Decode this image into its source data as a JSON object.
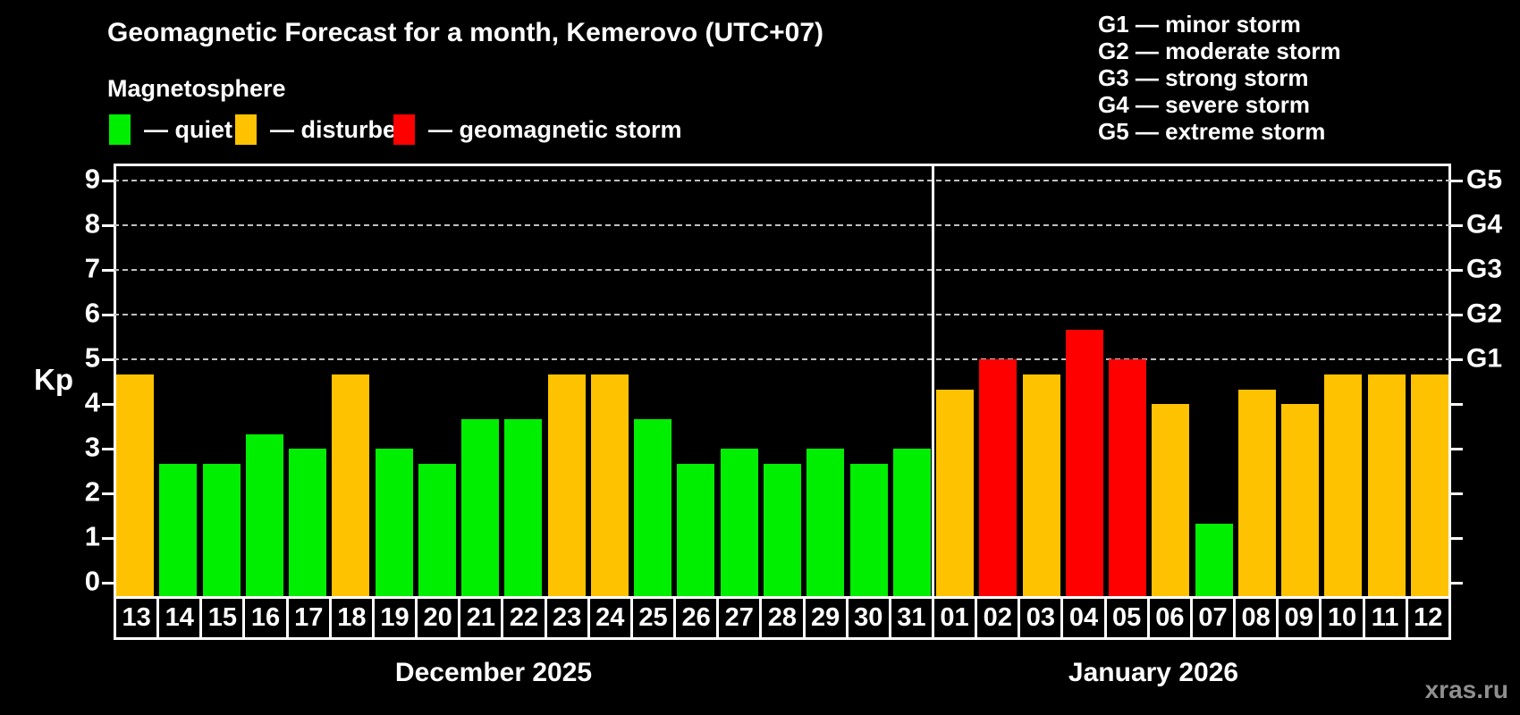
{
  "header": {
    "title": "Geomagnetic Forecast for a month, Kemerovo (UTC+07)",
    "subtitle": "Magnetosphere",
    "legend": [
      {
        "key": "quiet",
        "label": "— quiet",
        "color": "#00ee00"
      },
      {
        "key": "disturbed",
        "label": "— disturbed",
        "color": "#ffc200"
      },
      {
        "key": "storm",
        "label": "— geomagnetic storm",
        "color": "#ff0000"
      }
    ],
    "g_scale_legend": [
      "G1 — minor storm",
      "G2 — moderate storm",
      "G3 — strong storm",
      "G4 — severe storm",
      "G5 — extreme storm"
    ]
  },
  "chart_data": {
    "type": "bar",
    "title": "Geomagnetic Forecast for a month, Kemerovo (UTC+07)",
    "xlabel": "",
    "ylabel": "Kp",
    "ylim": [
      0,
      9.4
    ],
    "yticks": [
      0,
      1,
      2,
      3,
      4,
      5,
      6,
      7,
      8,
      9
    ],
    "gridline_kp": [
      5,
      6,
      7,
      8,
      9
    ],
    "grid_style": "horizontal dashed lines only at Kp 5–9 (storm levels)",
    "legend_position": "top",
    "right_axis": [
      {
        "label": "G5",
        "kp": 9
      },
      {
        "label": "G4",
        "kp": 8
      },
      {
        "label": "G3",
        "kp": 7
      },
      {
        "label": "G2",
        "kp": 6
      },
      {
        "label": "G1",
        "kp": 5
      }
    ],
    "colors": {
      "quiet": "#00ee00",
      "disturbed": "#ffc200",
      "storm": "#ff0000"
    },
    "months": [
      {
        "label": "December 2025",
        "days": [
          {
            "day": "13",
            "kp": 4.67,
            "state": "disturbed"
          },
          {
            "day": "14",
            "kp": 2.67,
            "state": "quiet"
          },
          {
            "day": "15",
            "kp": 2.67,
            "state": "quiet"
          },
          {
            "day": "16",
            "kp": 3.33,
            "state": "quiet"
          },
          {
            "day": "17",
            "kp": 3.0,
            "state": "quiet"
          },
          {
            "day": "18",
            "kp": 4.67,
            "state": "disturbed"
          },
          {
            "day": "19",
            "kp": 3.0,
            "state": "quiet"
          },
          {
            "day": "20",
            "kp": 2.67,
            "state": "quiet"
          },
          {
            "day": "21",
            "kp": 3.67,
            "state": "quiet"
          },
          {
            "day": "22",
            "kp": 3.67,
            "state": "quiet"
          },
          {
            "day": "23",
            "kp": 4.67,
            "state": "disturbed"
          },
          {
            "day": "24",
            "kp": 4.67,
            "state": "disturbed"
          },
          {
            "day": "25",
            "kp": 3.67,
            "state": "quiet"
          },
          {
            "day": "26",
            "kp": 2.67,
            "state": "quiet"
          },
          {
            "day": "27",
            "kp": 3.0,
            "state": "quiet"
          },
          {
            "day": "28",
            "kp": 2.67,
            "state": "quiet"
          },
          {
            "day": "29",
            "kp": 3.0,
            "state": "quiet"
          },
          {
            "day": "30",
            "kp": 2.67,
            "state": "quiet"
          },
          {
            "day": "31",
            "kp": 3.0,
            "state": "quiet"
          }
        ]
      },
      {
        "label": "January 2026",
        "days": [
          {
            "day": "01",
            "kp": 4.33,
            "state": "disturbed"
          },
          {
            "day": "02",
            "kp": 5.0,
            "state": "storm"
          },
          {
            "day": "03",
            "kp": 4.67,
            "state": "disturbed"
          },
          {
            "day": "04",
            "kp": 5.67,
            "state": "storm"
          },
          {
            "day": "05",
            "kp": 5.0,
            "state": "storm"
          },
          {
            "day": "06",
            "kp": 4.0,
            "state": "disturbed"
          },
          {
            "day": "07",
            "kp": 1.33,
            "state": "quiet"
          },
          {
            "day": "08",
            "kp": 4.33,
            "state": "disturbed"
          },
          {
            "day": "09",
            "kp": 4.0,
            "state": "disturbed"
          },
          {
            "day": "10",
            "kp": 4.67,
            "state": "disturbed"
          },
          {
            "day": "11",
            "kp": 4.67,
            "state": "disturbed"
          },
          {
            "day": "12",
            "kp": 4.67,
            "state": "disturbed"
          }
        ]
      }
    ]
  },
  "watermark": "xras.ru"
}
